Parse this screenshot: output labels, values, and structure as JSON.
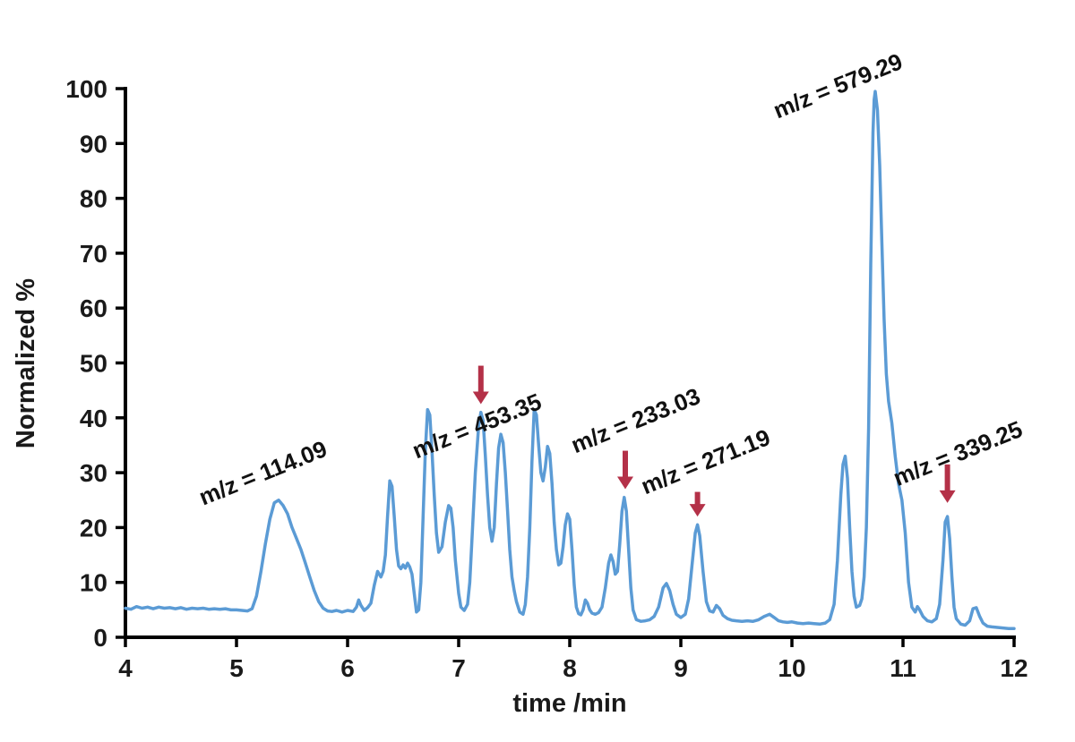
{
  "chart_data": {
    "type": "line",
    "title": "",
    "xlabel": "time /min",
    "ylabel": "Normalized %",
    "xlim": [
      4,
      12
    ],
    "ylim": [
      0,
      100
    ],
    "x_ticks": [
      4,
      5,
      6,
      7,
      8,
      9,
      10,
      11,
      12
    ],
    "y_ticks": [
      0,
      10,
      20,
      30,
      40,
      50,
      60,
      70,
      80,
      90,
      100
    ],
    "grid": false,
    "legend": false,
    "line_color": "#5b9bd5",
    "axis_color": "#000000",
    "arrow_color": "#b43148",
    "annotation_rotation_deg": -22,
    "series": [
      {
        "name": "chromatogram",
        "color": "#5b9bd5",
        "points": [
          [
            4.0,
            5.3
          ],
          [
            4.05,
            5.1
          ],
          [
            4.1,
            5.6
          ],
          [
            4.15,
            5.3
          ],
          [
            4.2,
            5.5
          ],
          [
            4.25,
            5.2
          ],
          [
            4.3,
            5.5
          ],
          [
            4.35,
            5.3
          ],
          [
            4.4,
            5.4
          ],
          [
            4.45,
            5.2
          ],
          [
            4.5,
            5.4
          ],
          [
            4.55,
            5.1
          ],
          [
            4.6,
            5.3
          ],
          [
            4.65,
            5.2
          ],
          [
            4.7,
            5.3
          ],
          [
            4.75,
            5.1
          ],
          [
            4.8,
            5.2
          ],
          [
            4.85,
            5.1
          ],
          [
            4.9,
            5.2
          ],
          [
            4.95,
            5.0
          ],
          [
            5.0,
            5.0
          ],
          [
            5.05,
            4.9
          ],
          [
            5.1,
            4.8
          ],
          [
            5.14,
            5.2
          ],
          [
            5.18,
            7.5
          ],
          [
            5.22,
            12
          ],
          [
            5.26,
            17
          ],
          [
            5.3,
            21.5
          ],
          [
            5.34,
            24.5
          ],
          [
            5.38,
            25
          ],
          [
            5.42,
            24
          ],
          [
            5.46,
            22.5
          ],
          [
            5.5,
            20
          ],
          [
            5.54,
            18
          ],
          [
            5.58,
            16
          ],
          [
            5.62,
            13.5
          ],
          [
            5.66,
            11
          ],
          [
            5.7,
            8.5
          ],
          [
            5.74,
            6.5
          ],
          [
            5.78,
            5.3
          ],
          [
            5.82,
            4.8
          ],
          [
            5.86,
            4.7
          ],
          [
            5.9,
            4.9
          ],
          [
            5.95,
            4.6
          ],
          [
            6.0,
            4.9
          ],
          [
            6.05,
            4.7
          ],
          [
            6.08,
            5.5
          ],
          [
            6.1,
            6.8
          ],
          [
            6.12,
            5.8
          ],
          [
            6.15,
            4.9
          ],
          [
            6.18,
            5.4
          ],
          [
            6.21,
            6.2
          ],
          [
            6.24,
            9.5
          ],
          [
            6.27,
            12
          ],
          [
            6.3,
            11
          ],
          [
            6.32,
            12
          ],
          [
            6.34,
            15
          ],
          [
            6.36,
            22
          ],
          [
            6.38,
            28.5
          ],
          [
            6.4,
            27.5
          ],
          [
            6.42,
            22
          ],
          [
            6.44,
            16
          ],
          [
            6.46,
            13
          ],
          [
            6.48,
            12.5
          ],
          [
            6.5,
            13.2
          ],
          [
            6.52,
            12.6
          ],
          [
            6.54,
            13.5
          ],
          [
            6.56,
            12.8
          ],
          [
            6.58,
            11.5
          ],
          [
            6.6,
            8
          ],
          [
            6.62,
            4.6
          ],
          [
            6.64,
            5.0
          ],
          [
            6.66,
            10
          ],
          [
            6.68,
            22
          ],
          [
            6.7,
            34
          ],
          [
            6.72,
            41.5
          ],
          [
            6.74,
            40.5
          ],
          [
            6.76,
            34
          ],
          [
            6.78,
            26
          ],
          [
            6.8,
            19
          ],
          [
            6.82,
            15.5
          ],
          [
            6.85,
            16.5
          ],
          [
            6.88,
            21
          ],
          [
            6.91,
            24
          ],
          [
            6.93,
            23.5
          ],
          [
            6.95,
            20
          ],
          [
            6.97,
            14
          ],
          [
            7.0,
            8
          ],
          [
            7.02,
            5.5
          ],
          [
            7.05,
            4.9
          ],
          [
            7.08,
            6
          ],
          [
            7.1,
            10
          ],
          [
            7.12,
            18
          ],
          [
            7.15,
            30
          ],
          [
            7.18,
            38.5
          ],
          [
            7.2,
            41
          ],
          [
            7.22,
            39.5
          ],
          [
            7.24,
            33
          ],
          [
            7.26,
            26
          ],
          [
            7.28,
            20
          ],
          [
            7.3,
            17.5
          ],
          [
            7.32,
            20
          ],
          [
            7.34,
            28
          ],
          [
            7.36,
            34.5
          ],
          [
            7.38,
            37
          ],
          [
            7.4,
            35.5
          ],
          [
            7.42,
            30
          ],
          [
            7.44,
            23
          ],
          [
            7.46,
            16
          ],
          [
            7.48,
            11
          ],
          [
            7.5,
            8.5
          ],
          [
            7.52,
            6.5
          ],
          [
            7.55,
            4.6
          ],
          [
            7.58,
            4.2
          ],
          [
            7.6,
            6
          ],
          [
            7.62,
            11
          ],
          [
            7.64,
            20
          ],
          [
            7.66,
            32
          ],
          [
            7.68,
            41.5
          ],
          [
            7.7,
            40.5
          ],
          [
            7.72,
            35
          ],
          [
            7.74,
            30
          ],
          [
            7.76,
            28.5
          ],
          [
            7.78,
            31
          ],
          [
            7.8,
            34.8
          ],
          [
            7.82,
            33.5
          ],
          [
            7.84,
            28
          ],
          [
            7.86,
            21
          ],
          [
            7.88,
            16
          ],
          [
            7.9,
            13.2
          ],
          [
            7.92,
            13.5
          ],
          [
            7.94,
            16.5
          ],
          [
            7.96,
            20.5
          ],
          [
            7.98,
            22.5
          ],
          [
            8.0,
            21.5
          ],
          [
            8.02,
            16
          ],
          [
            8.04,
            9.5
          ],
          [
            8.06,
            5.5
          ],
          [
            8.08,
            4.3
          ],
          [
            8.1,
            4.1
          ],
          [
            8.12,
            5
          ],
          [
            8.14,
            6.8
          ],
          [
            8.16,
            6.2
          ],
          [
            8.18,
            5
          ],
          [
            8.2,
            4.4
          ],
          [
            8.23,
            4.2
          ],
          [
            8.26,
            4.5
          ],
          [
            8.29,
            5.5
          ],
          [
            8.32,
            9
          ],
          [
            8.35,
            13.5
          ],
          [
            8.37,
            15
          ],
          [
            8.39,
            13.8
          ],
          [
            8.41,
            11.5
          ],
          [
            8.43,
            12
          ],
          [
            8.45,
            17
          ],
          [
            8.47,
            23
          ],
          [
            8.49,
            25.5
          ],
          [
            8.51,
            23
          ],
          [
            8.53,
            16
          ],
          [
            8.55,
            9
          ],
          [
            8.57,
            5
          ],
          [
            8.6,
            3.2
          ],
          [
            8.64,
            2.9
          ],
          [
            8.68,
            3.0
          ],
          [
            8.72,
            3.2
          ],
          [
            8.76,
            3.8
          ],
          [
            8.8,
            5.5
          ],
          [
            8.84,
            9
          ],
          [
            8.87,
            9.8
          ],
          [
            8.9,
            8.5
          ],
          [
            8.93,
            6
          ],
          [
            8.96,
            4.2
          ],
          [
            9.0,
            3.6
          ],
          [
            9.04,
            4.2
          ],
          [
            9.07,
            7
          ],
          [
            9.1,
            13
          ],
          [
            9.13,
            19
          ],
          [
            9.15,
            20.5
          ],
          [
            9.17,
            18.5
          ],
          [
            9.2,
            12
          ],
          [
            9.23,
            6.5
          ],
          [
            9.26,
            4.8
          ],
          [
            9.29,
            4.6
          ],
          [
            9.32,
            5.8
          ],
          [
            9.35,
            5.2
          ],
          [
            9.38,
            4
          ],
          [
            9.42,
            3.4
          ],
          [
            9.46,
            3.1
          ],
          [
            9.5,
            3.0
          ],
          [
            9.55,
            2.9
          ],
          [
            9.6,
            3.0
          ],
          [
            9.65,
            2.9
          ],
          [
            9.7,
            3.2
          ],
          [
            9.75,
            3.8
          ],
          [
            9.8,
            4.2
          ],
          [
            9.84,
            3.6
          ],
          [
            9.88,
            3.0
          ],
          [
            9.92,
            2.8
          ],
          [
            9.96,
            2.7
          ],
          [
            10.0,
            2.8
          ],
          [
            10.05,
            2.6
          ],
          [
            10.1,
            2.5
          ],
          [
            10.15,
            2.6
          ],
          [
            10.2,
            2.5
          ],
          [
            10.25,
            2.4
          ],
          [
            10.3,
            2.6
          ],
          [
            10.34,
            3.2
          ],
          [
            10.38,
            6
          ],
          [
            10.41,
            14
          ],
          [
            10.44,
            26
          ],
          [
            10.46,
            31.5
          ],
          [
            10.48,
            33
          ],
          [
            10.5,
            29
          ],
          [
            10.52,
            20
          ],
          [
            10.54,
            12
          ],
          [
            10.56,
            7.5
          ],
          [
            10.58,
            5.5
          ],
          [
            10.61,
            5.8
          ],
          [
            10.63,
            7
          ],
          [
            10.65,
            11
          ],
          [
            10.67,
            20
          ],
          [
            10.69,
            38
          ],
          [
            10.71,
            68
          ],
          [
            10.73,
            92
          ],
          [
            10.74,
            98
          ],
          [
            10.75,
            99.5
          ],
          [
            10.77,
            96
          ],
          [
            10.79,
            86
          ],
          [
            10.81,
            72
          ],
          [
            10.83,
            58
          ],
          [
            10.85,
            48
          ],
          [
            10.87,
            43
          ],
          [
            10.9,
            39
          ],
          [
            10.93,
            33
          ],
          [
            10.96,
            28
          ],
          [
            10.99,
            25
          ],
          [
            11.02,
            19
          ],
          [
            11.05,
            10
          ],
          [
            11.08,
            5.5
          ],
          [
            11.11,
            4.6
          ],
          [
            11.13,
            5.6
          ],
          [
            11.15,
            5.0
          ],
          [
            11.18,
            3.8
          ],
          [
            11.22,
            3.0
          ],
          [
            11.26,
            2.8
          ],
          [
            11.3,
            3.4
          ],
          [
            11.33,
            6
          ],
          [
            11.36,
            14
          ],
          [
            11.38,
            21
          ],
          [
            11.4,
            22
          ],
          [
            11.42,
            18
          ],
          [
            11.44,
            11
          ],
          [
            11.46,
            5.5
          ],
          [
            11.48,
            3.4
          ],
          [
            11.52,
            2.4
          ],
          [
            11.56,
            2.2
          ],
          [
            11.6,
            3.0
          ],
          [
            11.63,
            5.2
          ],
          [
            11.66,
            5.4
          ],
          [
            11.69,
            3.8
          ],
          [
            11.72,
            2.6
          ],
          [
            11.76,
            2.0
          ],
          [
            11.8,
            1.9
          ],
          [
            11.85,
            1.8
          ],
          [
            11.9,
            1.7
          ],
          [
            11.95,
            1.6
          ],
          [
            12.0,
            1.6
          ]
        ]
      }
    ],
    "annotations": [
      {
        "label": "m/z = 114.09",
        "x": 4.7,
        "y": 24.0
      },
      {
        "label": "m/z = 453.35",
        "x": 6.62,
        "y": 32.5
      },
      {
        "label": "m/z = 233.03",
        "x": 8.05,
        "y": 33.5
      },
      {
        "label": "m/z = 271.19",
        "x": 8.68,
        "y": 26.0
      },
      {
        "label": "m/z = 579.29",
        "x": 9.87,
        "y": 94.5
      },
      {
        "label": "m/z = 339.25",
        "x": 10.95,
        "y": 27.5
      }
    ],
    "arrows": [
      {
        "x": 7.2,
        "y_from": 49.5,
        "y_to": 42.5
      },
      {
        "x": 8.5,
        "y_from": 34.0,
        "y_to": 27.0
      },
      {
        "x": 9.15,
        "y_from": 26.5,
        "y_to": 22.0
      },
      {
        "x": 11.4,
        "y_from": 31.5,
        "y_to": 24.5
      }
    ]
  }
}
